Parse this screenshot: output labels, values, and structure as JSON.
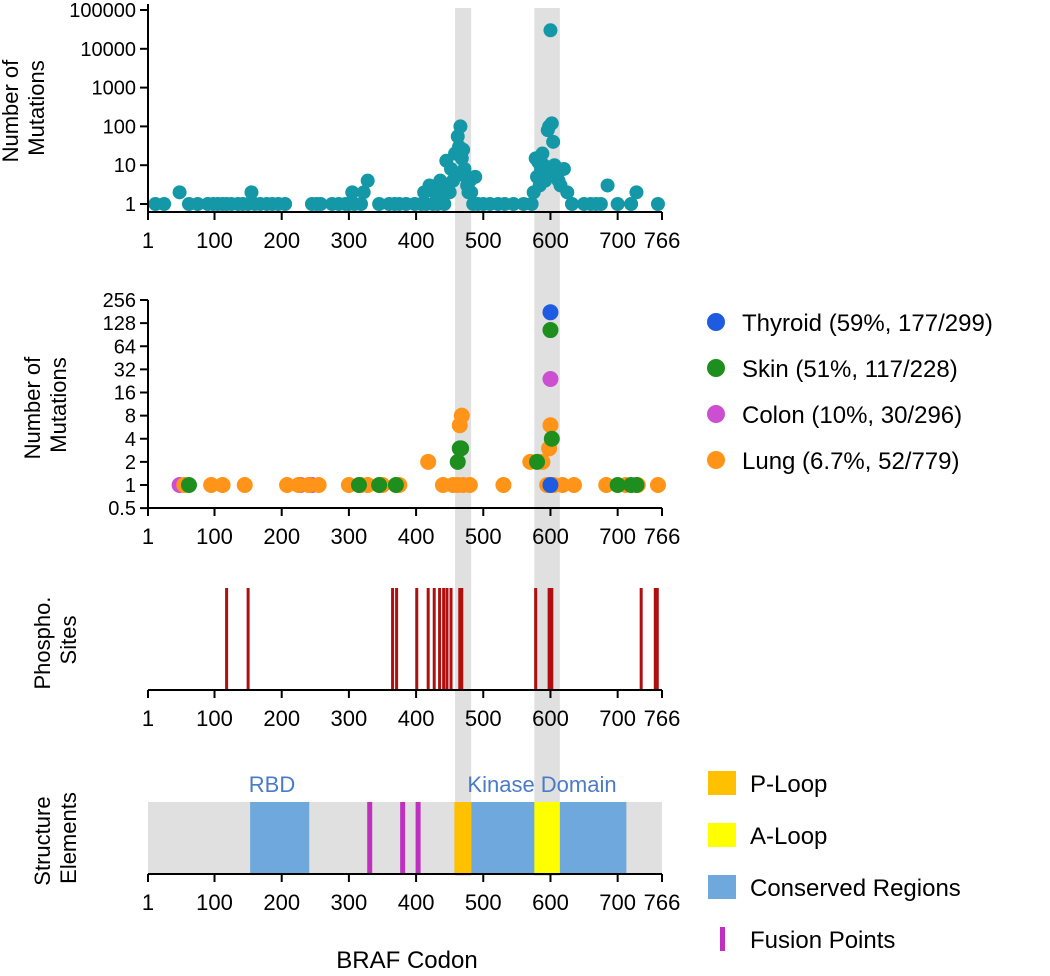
{
  "colors": {
    "teal": "#1497a6",
    "thyroid": "#1f5be0",
    "skin": "#1e8e1e",
    "colon": "#cc4fd1",
    "lung": "#ff9418",
    "phospho": "#b00f0f",
    "shade": "#e0e0e0",
    "ploop": "#ffc000",
    "aloop": "#ffff00",
    "conserved": "#6fa8dc",
    "fusion": "#c030c0",
    "domain_label": "#4a7bc9"
  },
  "chart_data": [
    {
      "id": "mutations_all",
      "type": "scatter",
      "ylabel": "Number of Mutations",
      "ylabel_lines": [
        "Number of",
        "Mutations"
      ],
      "yscale": "log10",
      "ylim": [
        1,
        100000
      ],
      "yticks": [
        "1",
        "10",
        "100",
        "1000",
        "10000",
        "100000"
      ],
      "xlim": [
        1,
        766
      ],
      "xticks": [
        "1",
        "100",
        "200",
        "300",
        "400",
        "500",
        "600",
        "700",
        "766"
      ],
      "x": [
        12,
        25,
        48,
        62,
        75,
        90,
        98,
        105,
        112,
        118,
        125,
        135,
        142,
        150,
        155,
        160,
        168,
        178,
        186,
        195,
        205,
        245,
        252,
        258,
        275,
        285,
        295,
        300,
        305,
        308,
        318,
        322,
        328,
        345,
        360,
        368,
        375,
        385,
        398,
        408,
        412,
        415,
        420,
        425,
        428,
        432,
        436,
        440,
        442,
        445,
        448,
        450,
        452,
        455,
        458,
        460,
        462,
        464,
        466,
        468,
        470,
        472,
        474,
        476,
        478,
        480,
        482,
        485,
        488,
        492,
        500,
        510,
        522,
        532,
        545,
        560,
        572,
        575,
        578,
        580,
        582,
        584,
        586,
        588,
        590,
        592,
        594,
        596,
        598,
        600,
        602,
        604,
        606,
        608,
        610,
        612,
        615,
        620,
        625,
        632,
        650,
        660,
        668,
        675,
        685,
        700,
        720,
        728,
        760
      ],
      "y": [
        1,
        1,
        2,
        1,
        1,
        1,
        1,
        1,
        1,
        1,
        1,
        1,
        1,
        1,
        2,
        1,
        1,
        1,
        1,
        1,
        1,
        1,
        1,
        1,
        1,
        1,
        1,
        1,
        2,
        1,
        1,
        2,
        4,
        1,
        1,
        1,
        1,
        1,
        1,
        1,
        2,
        1,
        3,
        1,
        2,
        1,
        4,
        2,
        1,
        13,
        3,
        2,
        8,
        4,
        20,
        6,
        55,
        30,
        100,
        15,
        25,
        8,
        5,
        3,
        2,
        4,
        2,
        1,
        5,
        1,
        1,
        1,
        1,
        1,
        1,
        1,
        1,
        2,
        15,
        5,
        12,
        3,
        8,
        20,
        10,
        4,
        6,
        80,
        100,
        30000,
        120,
        40,
        10,
        8,
        6,
        4,
        3,
        8,
        2,
        1,
        1,
        1,
        1,
        1,
        3,
        1,
        1,
        2,
        1
      ]
    },
    {
      "id": "mutations_tissue",
      "type": "scatter",
      "ylabel": "Number of Mutations",
      "ylabel_lines": [
        "Number of",
        "Mutations"
      ],
      "yscale": "log2",
      "ylim": [
        0.5,
        256
      ],
      "yticks": [
        "0.5",
        "1",
        "2",
        "4",
        "8",
        "16",
        "32",
        "64",
        "128",
        "256"
      ],
      "xlim": [
        1,
        766
      ],
      "xticks": [
        "1",
        "100",
        "200",
        "300",
        "400",
        "500",
        "600",
        "700",
        "766"
      ],
      "legend": [
        {
          "label": "Thyroid (59%, 177/299)",
          "color_key": "thyroid"
        },
        {
          "label": "Skin (51%, 117/228)",
          "color_key": "skin"
        },
        {
          "label": "Colon (10%, 30/296)",
          "color_key": "colon"
        },
        {
          "label": "Lung (6.7%, 52/779)",
          "color_key": "lung"
        }
      ],
      "series": [
        {
          "name": "Colon",
          "color_key": "colon",
          "x": [
            48,
            228,
            245,
            600
          ],
          "y": [
            1,
            1,
            1,
            24
          ]
        },
        {
          "name": "Lung",
          "color_key": "lung",
          "x": [
            55,
            95,
            112,
            145,
            208,
            225,
            240,
            255,
            300,
            318,
            328,
            350,
            375,
            418,
            440,
            455,
            462,
            465,
            468,
            470,
            480,
            530,
            570,
            588,
            595,
            598,
            600,
            605,
            618,
            635,
            683,
            712,
            730,
            760
          ],
          "y": [
            1,
            1,
            1,
            1,
            1,
            1,
            1,
            1,
            1,
            1,
            1,
            1,
            1,
            2,
            1,
            1,
            1,
            6,
            8,
            1,
            1,
            1,
            2,
            2,
            1,
            3,
            6,
            1,
            1,
            1,
            1,
            1,
            1,
            1
          ]
        },
        {
          "name": "Skin",
          "color_key": "skin",
          "x": [
            62,
            315,
            345,
            370,
            462,
            465,
            467,
            580,
            600,
            602,
            700,
            720,
            728
          ],
          "y": [
            1,
            1,
            1,
            1,
            2,
            3,
            3,
            2,
            104,
            4,
            1,
            1,
            1
          ]
        },
        {
          "name": "Thyroid",
          "color_key": "thyroid",
          "x": [
            600,
            600
          ],
          "y": [
            177,
            1
          ]
        }
      ]
    },
    {
      "id": "phospho_sites",
      "type": "bar",
      "ylabel": "Phospho. Sites",
      "ylabel_lines": [
        "Phospho.",
        "Sites"
      ],
      "xlim": [
        1,
        766
      ],
      "xticks": [
        "1",
        "100",
        "200",
        "300",
        "400",
        "500",
        "600",
        "700",
        "766"
      ],
      "x": [
        118,
        150,
        365,
        371,
        401,
        418,
        427,
        435,
        441,
        446,
        452,
        465,
        468,
        578,
        598,
        602,
        735,
        756,
        759
      ]
    },
    {
      "id": "structure",
      "type": "bar",
      "ylabel": "Structure Elements",
      "ylabel_lines": [
        "Structure",
        "Elements"
      ],
      "xlabel": "BRAF Codon",
      "xlim": [
        1,
        766
      ],
      "xticks": [
        "1",
        "100",
        "200",
        "300",
        "400",
        "500",
        "600",
        "700",
        "766"
      ],
      "annotations": [
        "RBD",
        "Kinase Domain"
      ],
      "conserved": [
        [
          153,
          241
        ],
        [
          482,
          713
        ]
      ],
      "ploop": [
        457,
        482
      ],
      "aloop": [
        576,
        614
      ],
      "fusion": [
        331,
        380,
        403
      ],
      "legend": [
        {
          "label": "P-Loop",
          "color_key": "ploop"
        },
        {
          "label": "A-Loop",
          "color_key": "aloop"
        },
        {
          "label": "Conserved Regions",
          "color_key": "conserved"
        },
        {
          "label": "Fusion Points",
          "color_key": "fusion"
        }
      ]
    }
  ]
}
